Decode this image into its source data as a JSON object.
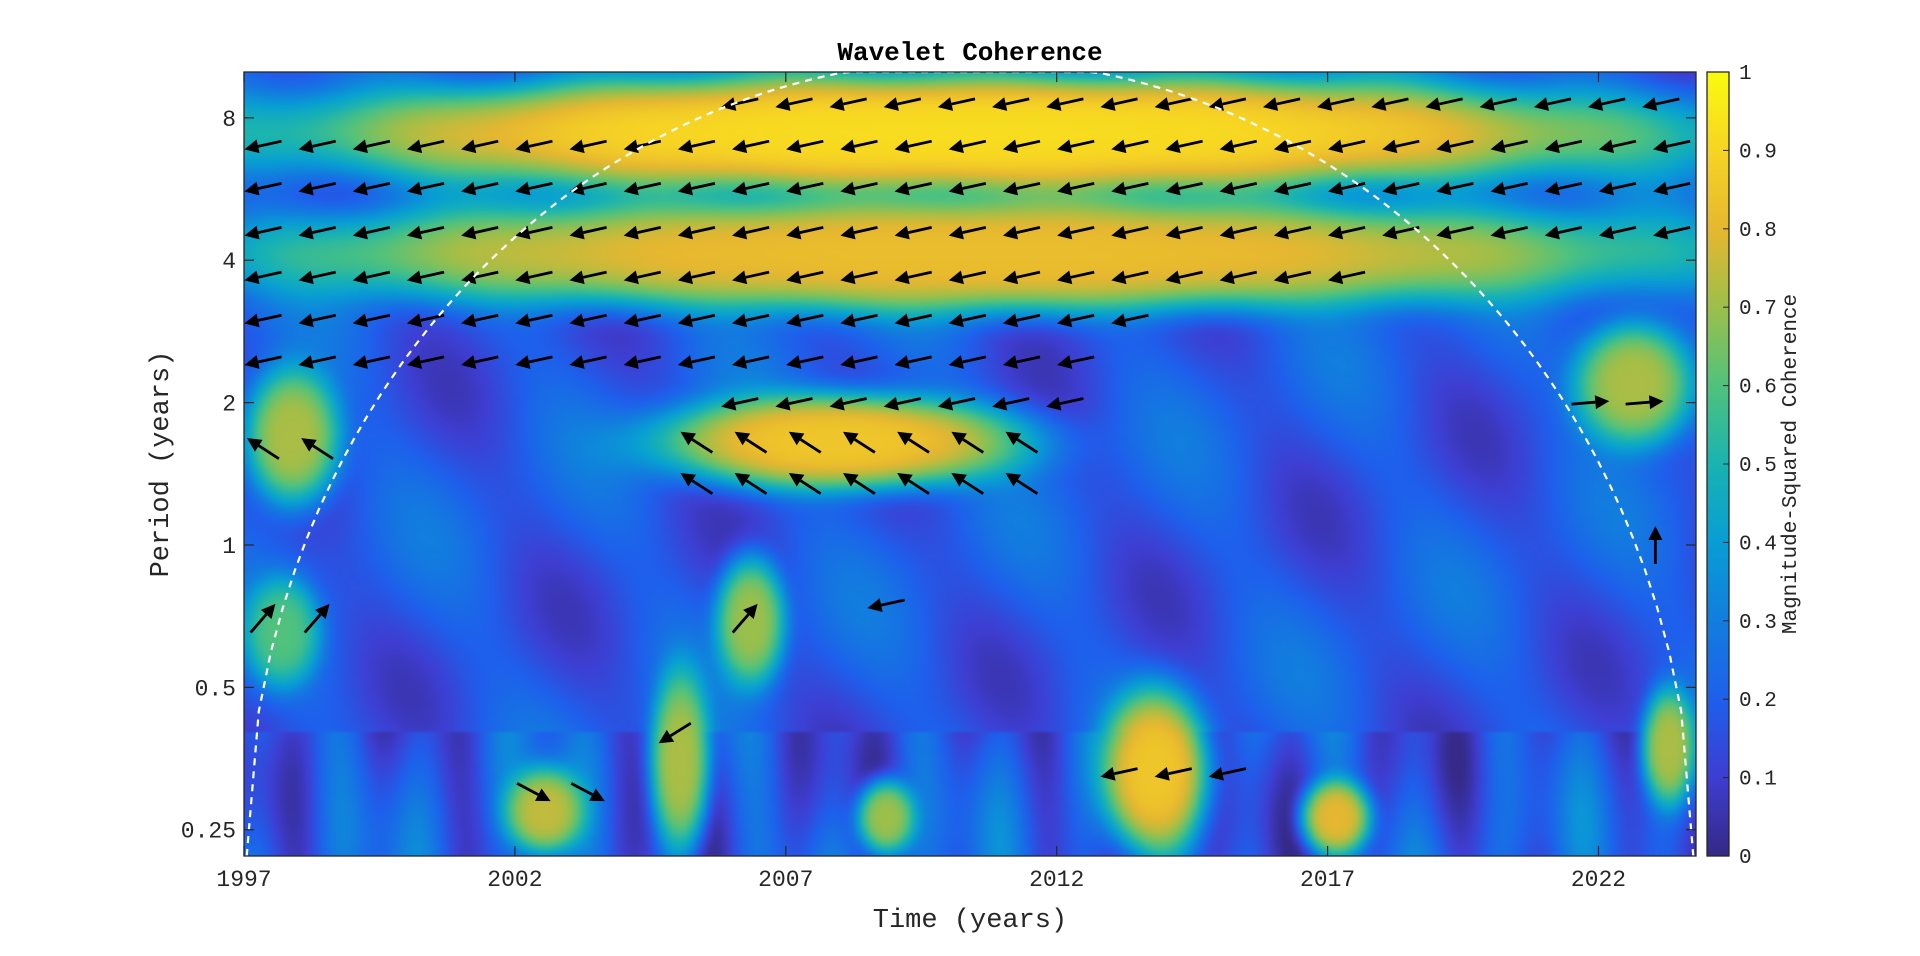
{
  "chart_data": {
    "type": "heatmap",
    "title": "Wavelet Coherence",
    "xlabel": "Time (years)",
    "ylabel": "Period (years)",
    "colorbar_label": "Magnitude-Squared Coherence",
    "colormap": "parula",
    "x_range": [
      1997,
      2023.8
    ],
    "x_ticks": [
      1997,
      2002,
      2007,
      2012,
      2017,
      2022
    ],
    "x_tick_labels": [
      "1997",
      "2002",
      "2007",
      "2012",
      "2017",
      "2022"
    ],
    "y_scale": "log2",
    "y_range": [
      0.22,
      10
    ],
    "y_ticks": [
      0.25,
      0.5,
      1,
      2,
      4,
      8
    ],
    "y_tick_labels": [
      "0.25",
      "0.5",
      "1",
      "2",
      "4",
      "8"
    ],
    "clim": [
      0,
      1
    ],
    "colorbar_ticks": [
      0,
      0.1,
      0.2,
      0.3,
      0.4,
      0.5,
      0.6,
      0.7,
      0.8,
      0.9,
      1
    ],
    "colorbar_tick_labels": [
      "0",
      "0.1",
      "0.2",
      "0.3",
      "0.4",
      "0.5",
      "0.6",
      "0.7",
      "0.8",
      "0.9",
      "1"
    ],
    "cone_of_influence": {
      "style": "dashed",
      "color": "#ffffff"
    },
    "coherence_regions": [
      {
        "t": [
          1997,
          2023.8
        ],
        "period": [
          5.5,
          10
        ],
        "peak": 0.92
      },
      {
        "t": [
          1997,
          2023.8
        ],
        "period": [
          3.1,
          5.5
        ],
        "peak": 0.82
      },
      {
        "t": [
          2004.5,
          2011.5
        ],
        "period": [
          1.3,
          2.1
        ],
        "peak": 0.85
      },
      {
        "t": [
          1997,
          1998.8
        ],
        "period": [
          1.2,
          2.4
        ],
        "peak": 0.72
      },
      {
        "t": [
          2005.7,
          2007.0
        ],
        "period": [
          0.5,
          0.95
        ],
        "peak": 0.7
      },
      {
        "t": [
          2012.8,
          2014.8
        ],
        "period": [
          0.22,
          0.5
        ],
        "peak": 0.85
      },
      {
        "t": [
          2016.5,
          2017.8
        ],
        "period": [
          0.22,
          0.32
        ],
        "peak": 0.8
      },
      {
        "t": [
          2001.8,
          2003.3
        ],
        "period": [
          0.22,
          0.34
        ],
        "peak": 0.75
      },
      {
        "t": [
          2004.5,
          2005.6
        ],
        "period": [
          0.22,
          0.55
        ],
        "peak": 0.72
      },
      {
        "t": [
          2008.3,
          2009.4
        ],
        "period": [
          0.22,
          0.32
        ],
        "peak": 0.7
      },
      {
        "t": [
          2021.5,
          2023.8
        ],
        "period": [
          1.6,
          3.0
        ],
        "peak": 0.72
      },
      {
        "t": [
          2022.8,
          2023.8
        ],
        "period": [
          0.28,
          0.5
        ],
        "peak": 0.72
      },
      {
        "t": [
          1997,
          1998.4
        ],
        "period": [
          0.5,
          0.85
        ],
        "peak": 0.6
      }
    ],
    "phase_arrow_groups": [
      {
        "t": [
          2005.8,
          2023.6
        ],
        "period": 8.6,
        "direction": "left"
      },
      {
        "t": [
          1997,
          2023.6
        ],
        "period": 7.0,
        "direction": "left"
      },
      {
        "t": [
          1997,
          2023.6
        ],
        "period": 5.7,
        "direction": "left"
      },
      {
        "t": [
          1997,
          2023.6
        ],
        "period": 4.6,
        "direction": "left"
      },
      {
        "t": [
          1997,
          2017.8
        ],
        "period": 3.7,
        "direction": "left"
      },
      {
        "t": [
          1997,
          2013.8
        ],
        "period": 3.0,
        "direction": "left"
      },
      {
        "t": [
          1997,
          2012.7
        ],
        "period": 2.45,
        "direction": "left"
      },
      {
        "t": [
          2005.8,
          2012.7
        ],
        "period": 2.0,
        "direction": "left"
      },
      {
        "t": [
          2005.0,
          2011.5
        ],
        "period": 1.65,
        "direction": "up-left"
      },
      {
        "t": [
          2005.0,
          2011.5
        ],
        "period": 1.35,
        "direction": "up-left"
      },
      {
        "t": [
          1997,
          1998.8
        ],
        "period": 1.6,
        "direction": "up-left"
      },
      {
        "t": [
          2021.5,
          2023.6
        ],
        "period": 2.0,
        "direction": "right"
      },
      {
        "t": [
          2022.7,
          2023.5
        ],
        "period": 1.0,
        "direction": "up"
      },
      {
        "t": [
          1997,
          1998.7
        ],
        "period": 0.7,
        "direction": "up-right"
      },
      {
        "t": [
          2005.9,
          2006.8
        ],
        "period": 0.7,
        "direction": "up-right"
      },
      {
        "t": [
          2008.5,
          2009.5
        ],
        "period": 0.75,
        "direction": "left"
      },
      {
        "t": [
          2012.8,
          2015.5
        ],
        "period": 0.33,
        "direction": "left"
      },
      {
        "t": [
          2004.6,
          2005.8
        ],
        "period": 0.4,
        "direction": "down-left"
      },
      {
        "t": [
          2002.0,
          2003.5
        ],
        "period": 0.3,
        "direction": "down-right"
      }
    ]
  }
}
